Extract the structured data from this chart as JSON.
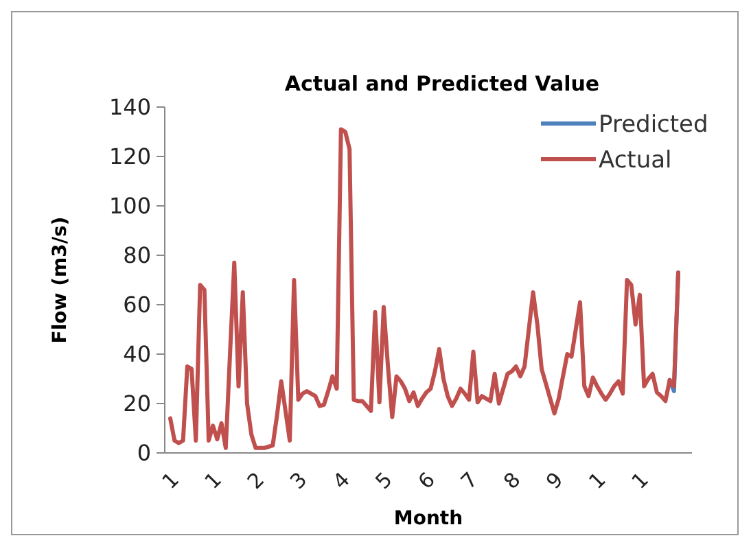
{
  "chart_data": {
    "type": "line",
    "title": "Actual and Predicted Value",
    "xlabel": "Month",
    "ylabel": "Flow (m3/s)",
    "categories": [
      "1",
      null,
      null,
      null,
      null,
      null,
      null,
      null,
      null,
      null,
      "1",
      null,
      null,
      null,
      null,
      null,
      null,
      null,
      null,
      null,
      "2",
      null,
      null,
      null,
      null,
      null,
      null,
      null,
      null,
      null,
      "3",
      null,
      null,
      null,
      null,
      null,
      null,
      null,
      null,
      null,
      "4",
      null,
      null,
      null,
      null,
      null,
      null,
      null,
      null,
      null,
      "5",
      null,
      null,
      null,
      null,
      null,
      null,
      null,
      null,
      null,
      "6",
      null,
      null,
      null,
      null,
      null,
      null,
      null,
      null,
      null,
      "7",
      null,
      null,
      null,
      null,
      null,
      null,
      null,
      null,
      null,
      "8",
      null,
      null,
      null,
      null,
      null,
      null,
      null,
      null,
      null,
      "9",
      null,
      null,
      null,
      null,
      null,
      null,
      null,
      null,
      null,
      "1",
      null,
      null,
      null,
      null,
      null,
      null,
      null,
      null,
      null,
      "1",
      null,
      null,
      null,
      null,
      null,
      null,
      null,
      null,
      null
    ],
    "ylim": [
      0,
      140
    ],
    "yticks": [
      0,
      20,
      40,
      60,
      80,
      100,
      120,
      140
    ],
    "grid": false,
    "legend": "top right",
    "line_style": "solid",
    "marker": "none",
    "series": [
      {
        "name": "Predicted",
        "color": "#4f81bd",
        "values": [
          null,
          null,
          null,
          null,
          null,
          null,
          null,
          null,
          null,
          null,
          null,
          null,
          null,
          null,
          null,
          null,
          null,
          null,
          null,
          null,
          null,
          null,
          null,
          null,
          null,
          null,
          null,
          null,
          null,
          null,
          null,
          null,
          null,
          null,
          null,
          null,
          null,
          null,
          null,
          null,
          null,
          null,
          null,
          null,
          null,
          null,
          null,
          null,
          null,
          null,
          null,
          null,
          null,
          null,
          null,
          null,
          null,
          null,
          null,
          null,
          null,
          null,
          null,
          null,
          null,
          null,
          null,
          null,
          null,
          null,
          null,
          null,
          null,
          null,
          null,
          null,
          null,
          null,
          null,
          null,
          null,
          null,
          null,
          null,
          null,
          null,
          null,
          null,
          null,
          null,
          null,
          null,
          null,
          null,
          null,
          null,
          null,
          null,
          null,
          null,
          null,
          null,
          null,
          null,
          null,
          null,
          null,
          null,
          null,
          null,
          null,
          null,
          null,
          null,
          null,
          null,
          null,
          29.5,
          25,
          73
        ]
      },
      {
        "name": "Actual",
        "color": "#c0504d",
        "values": [
          14,
          5,
          4,
          5,
          35,
          34,
          5,
          68,
          66,
          5,
          11,
          5.5,
          12,
          2,
          40,
          77,
          27,
          65,
          20,
          7.5,
          2,
          2,
          2,
          2.5,
          3,
          15,
          29,
          17,
          5,
          70,
          21.5,
          24,
          25,
          24,
          23,
          19,
          19.5,
          25,
          31,
          26,
          131,
          130,
          123,
          21.5,
          21,
          21,
          19,
          17,
          57,
          20.5,
          59,
          35,
          14.5,
          31,
          29,
          26,
          21,
          24.5,
          19,
          22,
          24.5,
          26,
          33,
          42,
          30,
          23,
          19,
          22,
          26,
          24,
          21.5,
          41,
          20.5,
          23,
          22,
          21,
          32,
          20,
          26,
          32,
          33,
          35,
          31,
          35,
          50,
          65,
          52,
          34,
          28,
          22,
          16,
          22,
          31,
          40,
          39,
          50,
          61,
          27,
          23,
          30.5,
          27,
          24,
          21.5,
          24,
          27,
          29,
          24,
          70,
          68,
          52,
          64,
          27,
          30,
          32,
          24.5,
          23,
          21,
          29.5,
          27,
          73
        ]
      }
    ]
  }
}
